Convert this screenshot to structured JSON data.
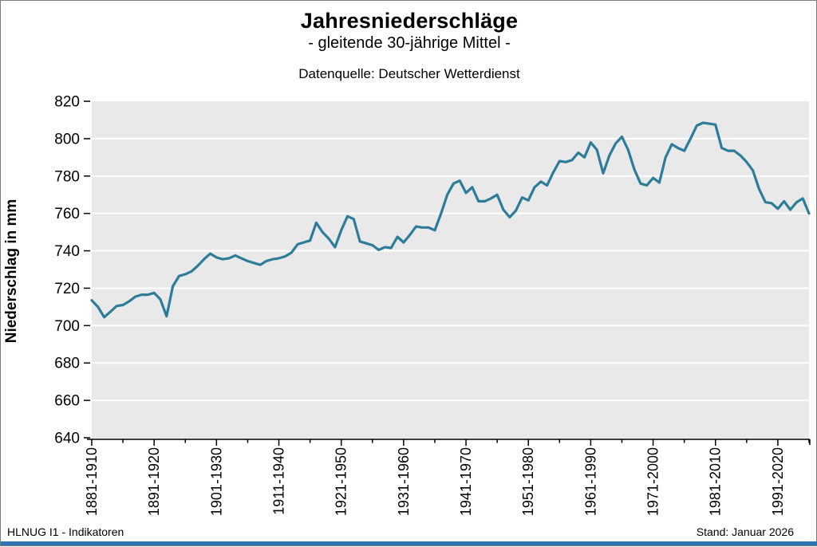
{
  "header": {
    "title": "Jahresniederschläge",
    "subtitle": "- gleitende 30-jährige Mittel -",
    "source": "Datenquelle: Deutscher Wetterdienst"
  },
  "footer": {
    "left": "HLNUG I1 - Indikatoren",
    "right": "Stand: Januar 2026"
  },
  "colors": {
    "line": "#2d7c99",
    "plot_bg": "#e9e9e9",
    "grid": "#ffffff",
    "axis": "#000000",
    "bottom_bar": "#2e74b5",
    "frame": "#7a7a7a"
  },
  "chart_data": {
    "type": "line",
    "title": "Jahresniederschläge",
    "subtitle": "- gleitende 30-jährige Mittel -",
    "source_note": "Datenquelle: Deutscher Wetterdienst",
    "ylabel": "Niederschlag in mm",
    "xlabel": "",
    "ylim": [
      640,
      820
    ],
    "y_ticks": [
      640,
      660,
      680,
      700,
      720,
      740,
      760,
      780,
      800,
      820
    ],
    "grid": "on",
    "legend": "none",
    "x_tick_labels": [
      "1881-1910",
      "1891-1920",
      "1901-1930",
      "1911-1940",
      "1921-1950",
      "1931-1960",
      "1941-1970",
      "1951-1980",
      "1961-1990",
      "1971-2000",
      "1981-2010",
      "1991-2020"
    ],
    "x_windows": {
      "first_window": "1881-1910",
      "last_window": "1996-2025",
      "window_length_years": 30,
      "step_years": 1,
      "major_tick_every": 10,
      "minor_tick_every": 5
    },
    "series": [
      {
        "name": "gleitendes 30-jähriges Mittel des Jahresniederschlags (mm)",
        "values": [
          713.5,
          710,
          704.5,
          707.5,
          710.5,
          711,
          713,
          715.5,
          716.5,
          716.5,
          717.5,
          714,
          705,
          721,
          726.5,
          727.5,
          729,
          732,
          735.5,
          738.5,
          736.5,
          735.5,
          736,
          737.5,
          736,
          734.5,
          733.5,
          732.5,
          734.5,
          735.5,
          736,
          737,
          739,
          743.5,
          744.5,
          745.5,
          755,
          750,
          746.5,
          742,
          751,
          758.5,
          757,
          745,
          744,
          743,
          740.5,
          742,
          741.5,
          747.5,
          744.5,
          748.5,
          753,
          752.5,
          752.5,
          751,
          760,
          770,
          776,
          777.5,
          771,
          774,
          766.5,
          766.5,
          768,
          770,
          762,
          758,
          761.5,
          768.5,
          767,
          774,
          777,
          775,
          782,
          788,
          787.5,
          788.5,
          792.5,
          790,
          798,
          794,
          781.5,
          791,
          797.5,
          801,
          794,
          783.5,
          776,
          775,
          779,
          776.5,
          790,
          797,
          795,
          793.5,
          800,
          807,
          808.5,
          808,
          807.5,
          795,
          793.5,
          793.5,
          791,
          787.5,
          783,
          773,
          766,
          765.5,
          762.5,
          766.5,
          762,
          766,
          768,
          760
        ]
      }
    ]
  }
}
